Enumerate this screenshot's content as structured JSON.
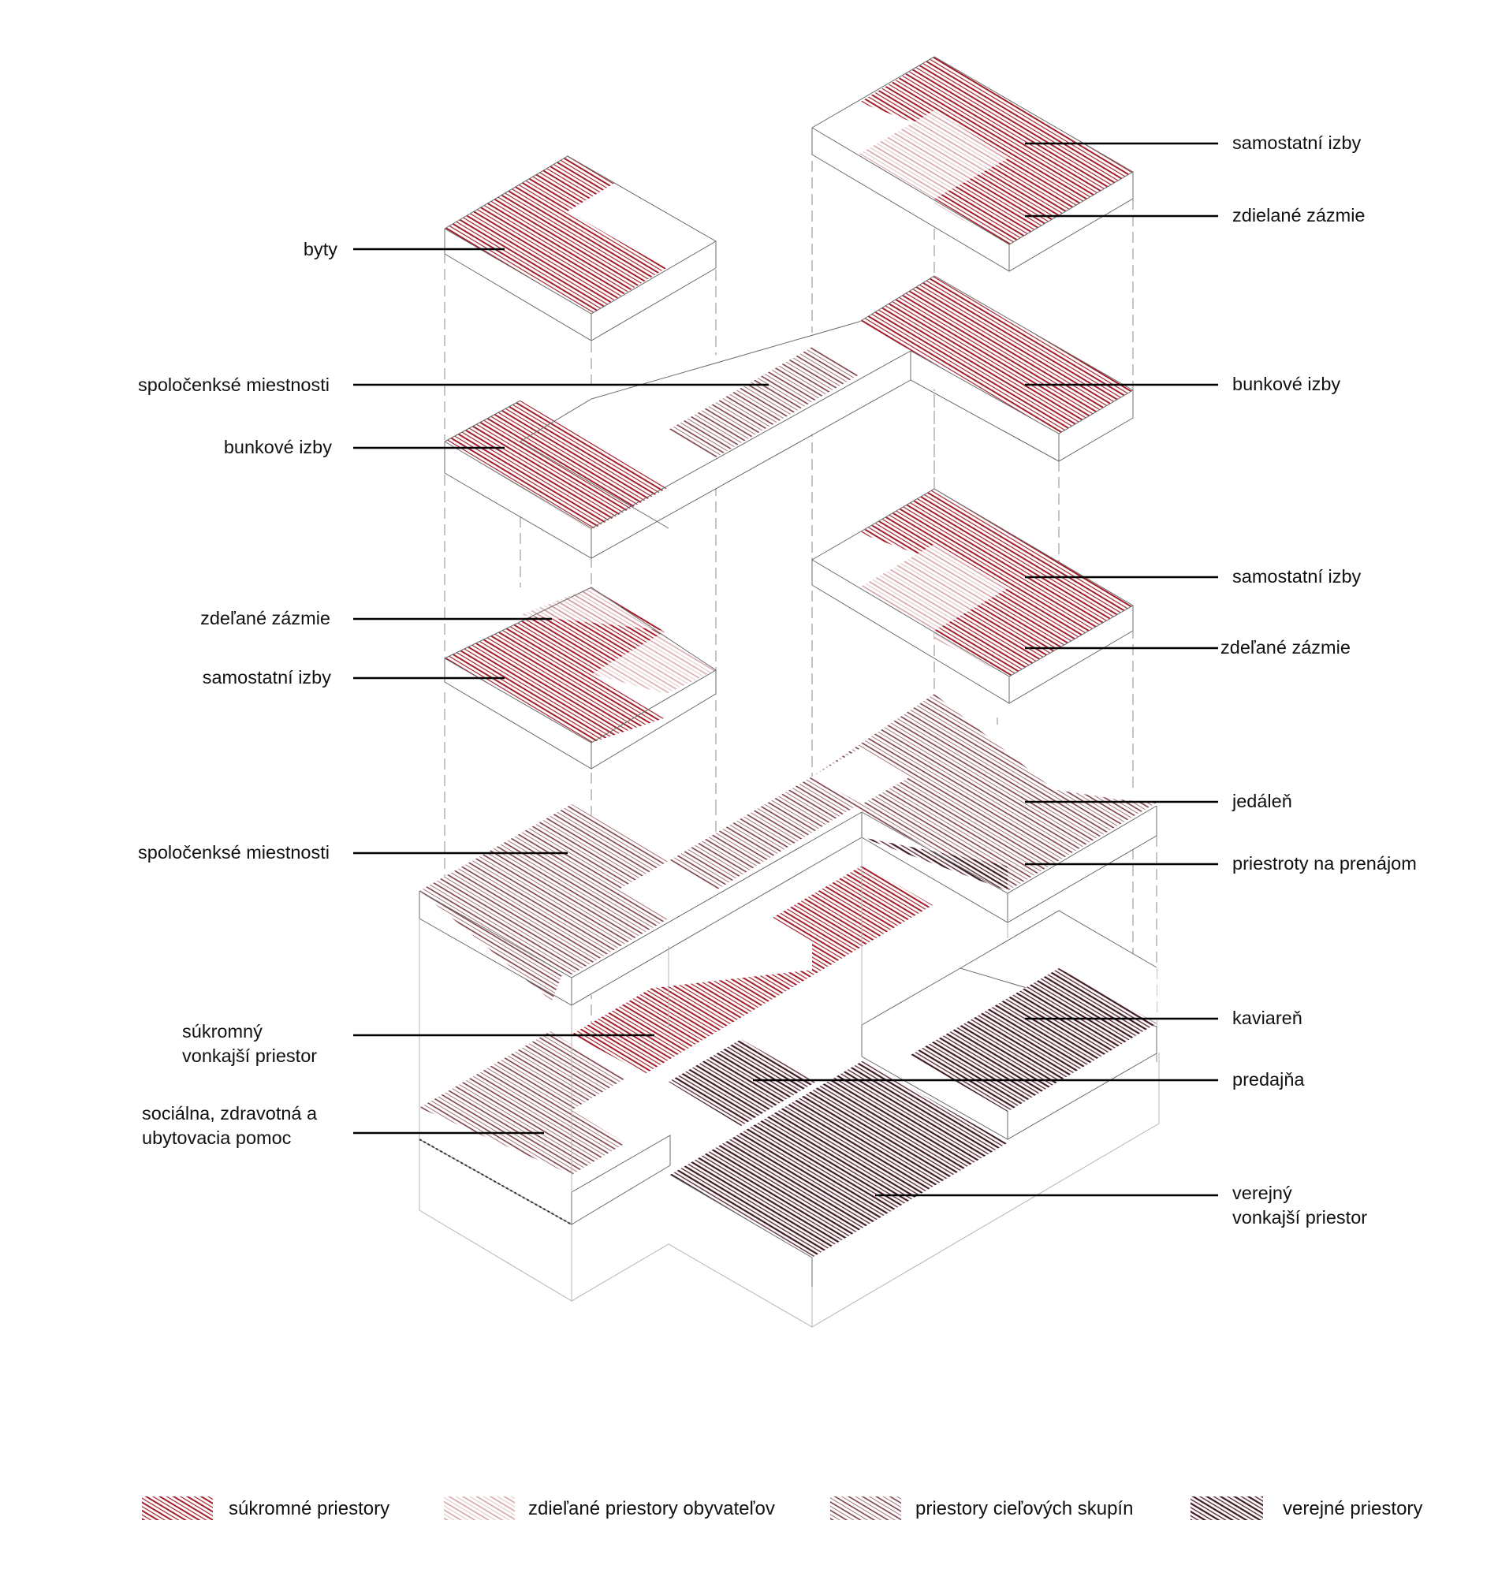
{
  "diagram": {
    "callouts_left": [
      {
        "id": "byty",
        "text": "byty"
      },
      {
        "id": "spol1",
        "text": "spoločenksé miestnosti"
      },
      {
        "id": "bunk1",
        "text": "bunkové izby"
      },
      {
        "id": "zdel1",
        "text": "zdeľané zázmie"
      },
      {
        "id": "samo1",
        "text": "samostatní izby"
      },
      {
        "id": "spol2",
        "text": "spoločenksé miestnosti"
      },
      {
        "id": "sukr",
        "lines": [
          "súkromný",
          "vonkajší priestor"
        ]
      },
      {
        "id": "soc",
        "lines": [
          "sociálna, zdravotná a",
          "ubytovacia pomoc"
        ]
      }
    ],
    "callouts_right": [
      {
        "id": "samo2",
        "text": "samostatní izby"
      },
      {
        "id": "zdel2",
        "text": "zdielané zázmie"
      },
      {
        "id": "bunk2",
        "text": "bunkové izby"
      },
      {
        "id": "samo3",
        "text": "samostatní izby"
      },
      {
        "id": "zdel3",
        "text": "zdeľané zázmie"
      },
      {
        "id": "jed",
        "text": "jedáleň"
      },
      {
        "id": "pren",
        "text": "priestroty na prenájom"
      },
      {
        "id": "kav",
        "text": "kaviareň"
      },
      {
        "id": "pred",
        "text": "predajňa"
      },
      {
        "id": "ver",
        "lines": [
          "verejný",
          "vonkajší priestor"
        ]
      }
    ]
  },
  "legend": [
    {
      "id": "private",
      "label": "súkromné priestory",
      "color": "#a11d2a"
    },
    {
      "id": "shared",
      "label": "zdieľané priestory obyvateľov",
      "color": "#cf9ba0"
    },
    {
      "id": "target",
      "label": "priestory cieľových skupín",
      "color": "#7a3a44"
    },
    {
      "id": "public",
      "label": "verejné priestory",
      "color": "#4a2028"
    }
  ]
}
